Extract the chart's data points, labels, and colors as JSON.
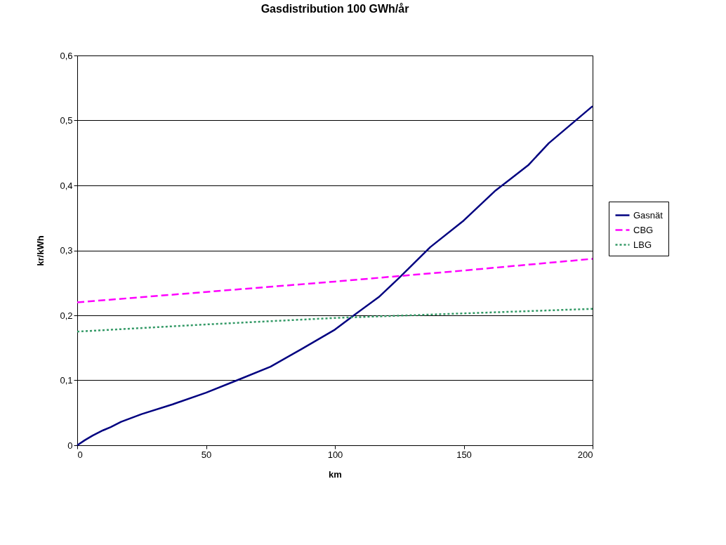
{
  "chart_data": {
    "type": "line",
    "title": "Gasdistribution 100 GWh/år",
    "xlabel": "km",
    "ylabel": "kr/kWh",
    "xlim": [
      0,
      200
    ],
    "xticks": [
      0,
      50,
      100,
      150,
      200
    ],
    "ylim": [
      0,
      0.6
    ],
    "yticks": [
      0,
      {
        "value": 0.1,
        "label": "0,1"
      },
      {
        "value": 0.2,
        "label": "0,2"
      },
      {
        "value": 0.3,
        "label": "0,3"
      },
      {
        "value": 0.4,
        "label": "0,4"
      },
      {
        "value": 0.5,
        "label": "0,5"
      },
      {
        "value": 0.6,
        "label": "0,6"
      }
    ],
    "grid": "y",
    "legend": "right",
    "series": [
      {
        "name": "Gasnät",
        "color": "#000080",
        "line_style": "solid",
        "x": [
          0,
          3,
          6,
          10,
          13,
          17,
          25,
          37,
          50,
          62,
          75,
          87,
          100,
          108,
          117,
          125,
          137,
          150,
          162,
          175,
          183,
          200
        ],
        "values": [
          0,
          0.008,
          0.015,
          0.023,
          0.028,
          0.036,
          0.048,
          0.063,
          0.081,
          0.1,
          0.121,
          0.148,
          0.178,
          0.202,
          0.228,
          0.258,
          0.305,
          0.346,
          0.391,
          0.431,
          0.465,
          0.522
        ]
      },
      {
        "name": "CBG",
        "color": "#ff00ff",
        "line_style": "dashed",
        "x": [
          0,
          50,
          100,
          150,
          200
        ],
        "values": [
          0.22,
          0.236,
          0.252,
          0.269,
          0.287
        ]
      },
      {
        "name": "LBG",
        "color": "#339966",
        "line_style": "dotted",
        "x": [
          0,
          50,
          100,
          150,
          200
        ],
        "values": [
          0.175,
          0.186,
          0.196,
          0.203,
          0.21
        ]
      }
    ]
  }
}
